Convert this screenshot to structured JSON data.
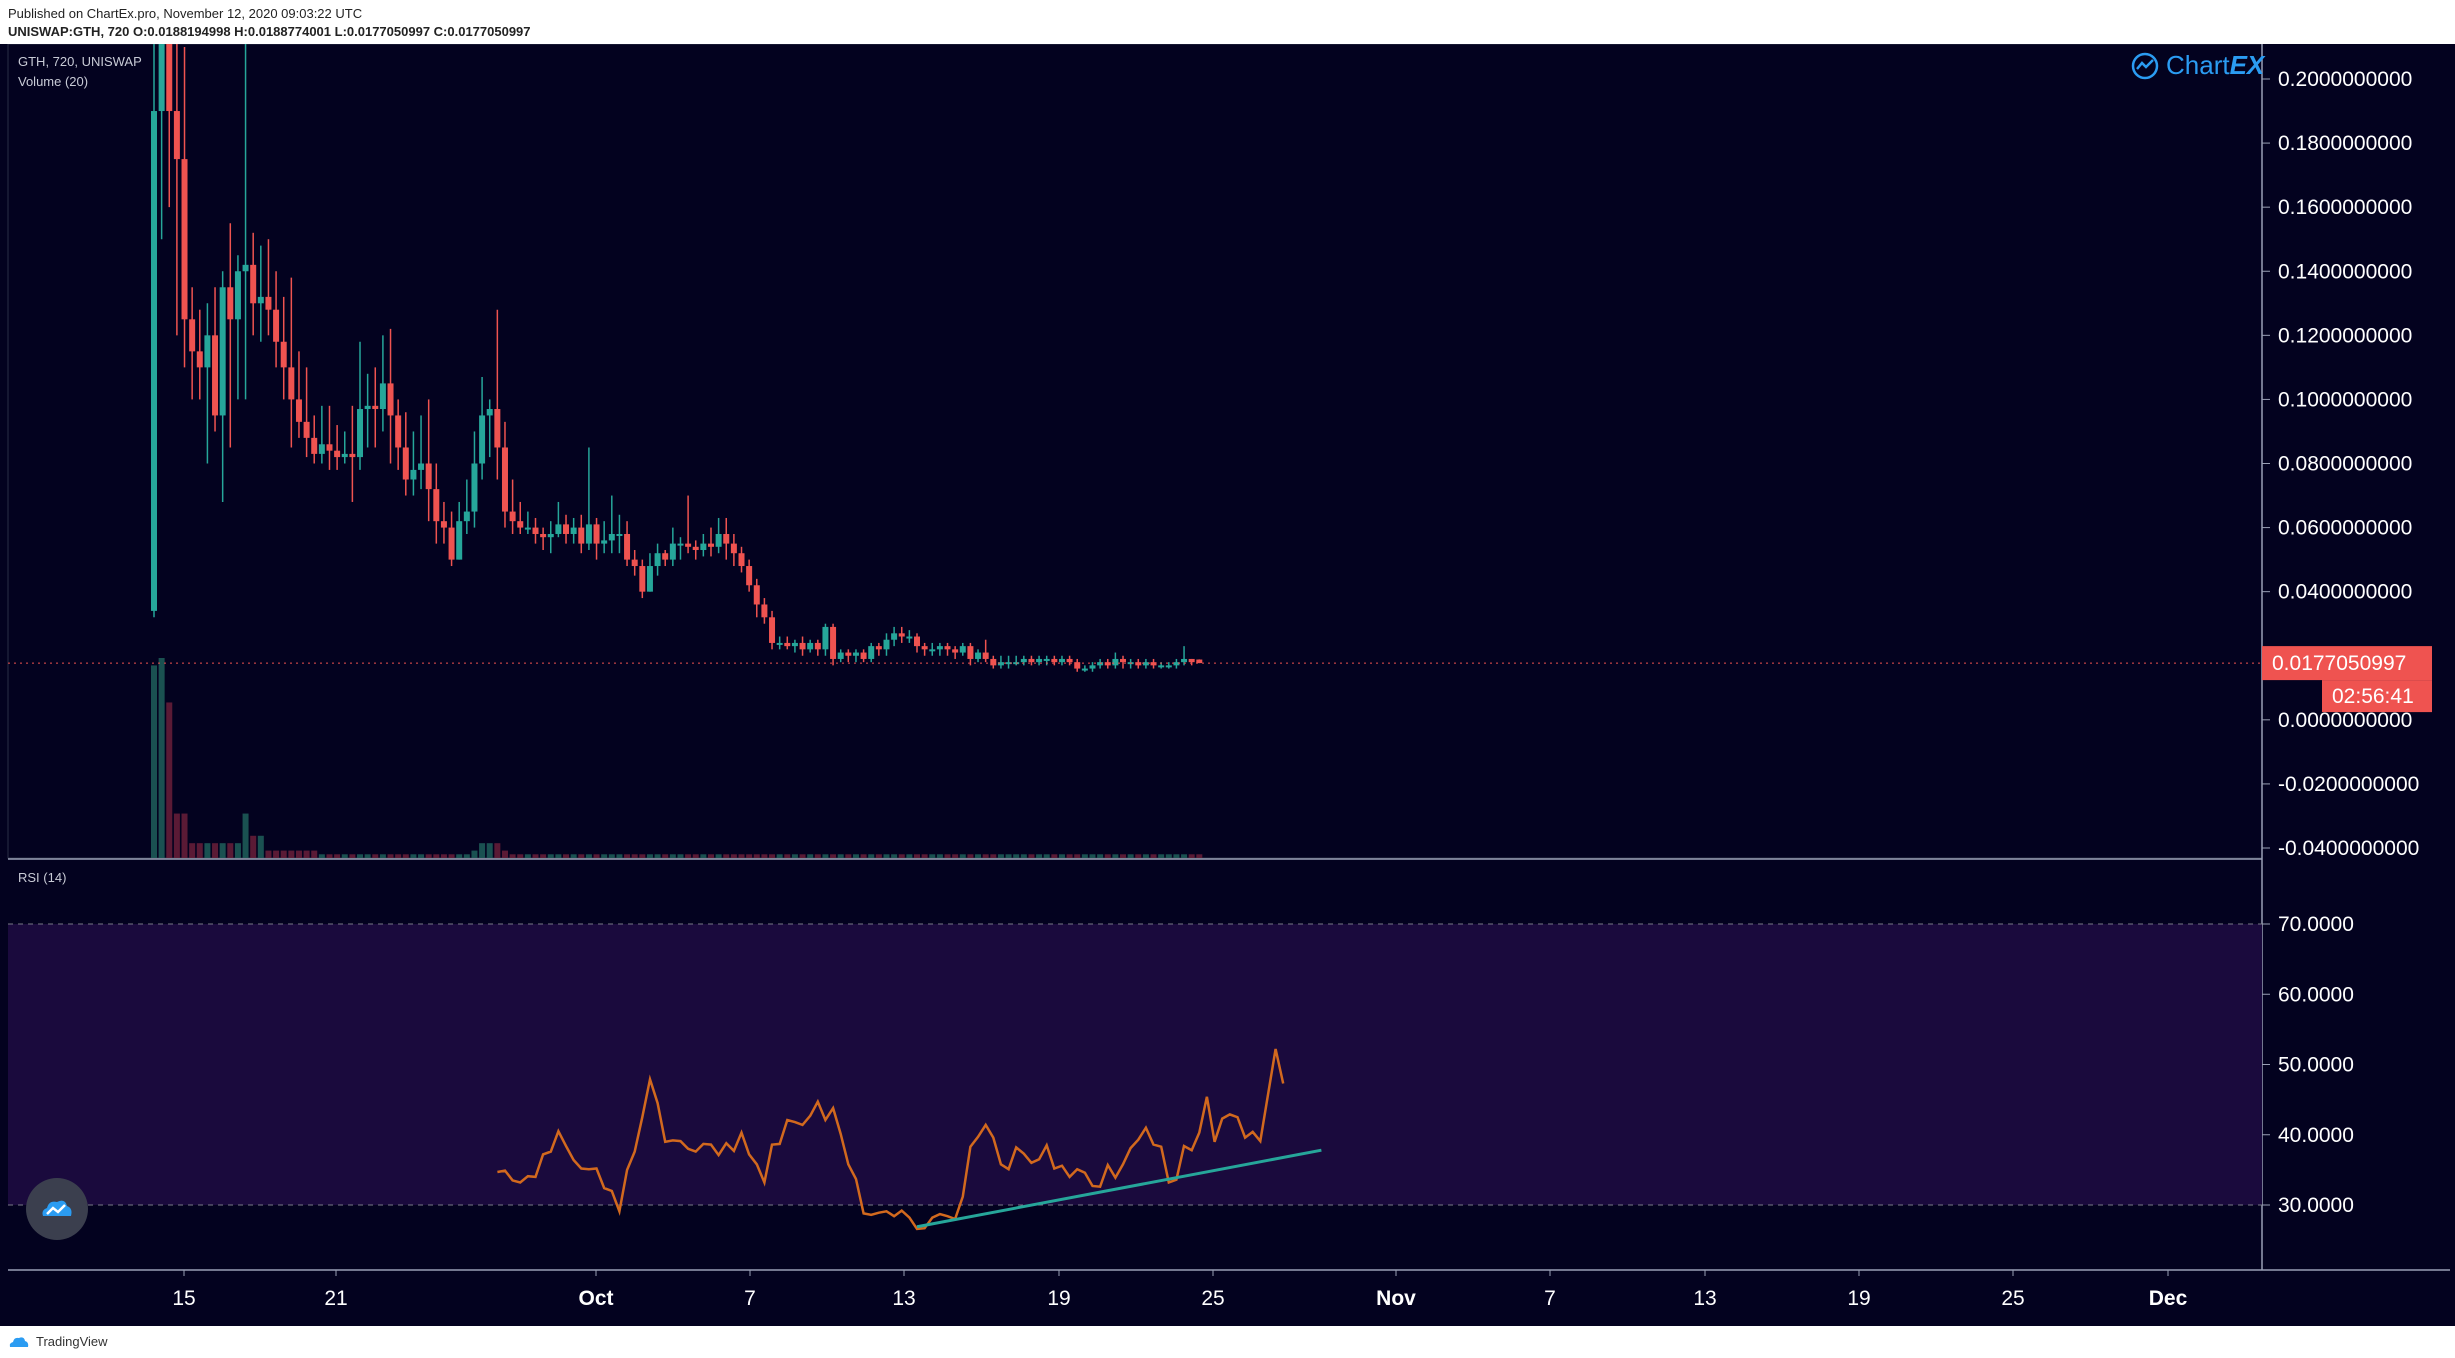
{
  "header": {
    "published": "Published on ChartEx.pro, November 12, 2020 09:03:22 UTC",
    "ohlc": "UNISWAP:GTH, 720  O:0.0188194998  H:0.0188774001  L:0.0177050997  C:0.0177050997"
  },
  "legend": {
    "symbol": "GTH, 720, UNISWAP",
    "volume": "Volume (20)",
    "rsi": "RSI (14)"
  },
  "brand": {
    "prefix": "Chart",
    "suffix": "EX"
  },
  "footer": {
    "label": "TradingView"
  },
  "price_axis": {
    "ticks": [
      "0.2000000000",
      "0.1800000000",
      "0.1600000000",
      "0.1400000000",
      "0.1200000000",
      "0.1000000000",
      "0.0800000000",
      "0.0600000000",
      "0.0400000000",
      "0.0000000000",
      "-0.0200000000",
      "-0.0400000000"
    ],
    "last_price": "0.0177050997",
    "countdown": "02:56:41"
  },
  "rsi_axis": {
    "ticks": [
      "70.0000",
      "60.0000",
      "50.0000",
      "40.0000",
      "30.0000"
    ]
  },
  "time_axis": {
    "ticks": [
      "15",
      "21",
      "Oct",
      "7",
      "13",
      "19",
      "25",
      "Nov",
      "7",
      "13",
      "19",
      "25",
      "Dec"
    ]
  },
  "colors": {
    "background": "#03021f",
    "up": "#26a69a",
    "down": "#ef5350",
    "rsi_line": "#d2691e",
    "trendline": "#26a69a",
    "rsi_band": "#1a0a3d",
    "grid_text": "#ffffff",
    "last_price_bg": "#ef5350"
  },
  "chart_data": [
    {
      "type": "candlestick",
      "title": "GTH, 720, UNISWAP",
      "ylim": [
        -0.04,
        0.21
      ],
      "x_labels": [
        "15",
        "21",
        "Oct",
        "7",
        "13",
        "19",
        "25",
        "Nov",
        "7",
        "13",
        "19",
        "25",
        "Dec"
      ],
      "candles": [
        [
          0.034,
          0.19,
          0.032,
          0.23
        ],
        [
          0.19,
          0.215,
          0.15,
          0.23
        ],
        [
          0.215,
          0.19,
          0.16,
          0.23
        ],
        [
          0.19,
          0.175,
          0.12,
          0.22
        ],
        [
          0.175,
          0.125,
          0.11,
          0.21
        ],
        [
          0.125,
          0.115,
          0.1,
          0.135
        ],
        [
          0.115,
          0.11,
          0.1,
          0.128
        ],
        [
          0.11,
          0.12,
          0.08,
          0.13
        ],
        [
          0.12,
          0.095,
          0.09,
          0.135
        ],
        [
          0.095,
          0.135,
          0.068,
          0.14
        ],
        [
          0.135,
          0.125,
          0.085,
          0.155
        ],
        [
          0.125,
          0.14,
          0.1,
          0.145
        ],
        [
          0.14,
          0.142,
          0.1,
          0.23
        ],
        [
          0.142,
          0.13,
          0.12,
          0.152
        ],
        [
          0.13,
          0.132,
          0.118,
          0.148
        ],
        [
          0.132,
          0.128,
          0.12,
          0.15
        ],
        [
          0.128,
          0.118,
          0.11,
          0.14
        ],
        [
          0.118,
          0.11,
          0.1,
          0.132
        ],
        [
          0.11,
          0.1,
          0.085,
          0.138
        ],
        [
          0.1,
          0.093,
          0.088,
          0.115
        ],
        [
          0.093,
          0.088,
          0.082,
          0.11
        ],
        [
          0.088,
          0.083,
          0.08,
          0.095
        ],
        [
          0.083,
          0.086,
          0.08,
          0.098
        ],
        [
          0.086,
          0.084,
          0.078,
          0.098
        ],
        [
          0.084,
          0.082,
          0.078,
          0.092
        ],
        [
          0.082,
          0.083,
          0.08,
          0.09
        ],
        [
          0.083,
          0.082,
          0.068,
          0.098
        ],
        [
          0.082,
          0.097,
          0.078,
          0.118
        ],
        [
          0.097,
          0.098,
          0.085,
          0.108
        ],
        [
          0.098,
          0.097,
          0.085,
          0.11
        ],
        [
          0.097,
          0.105,
          0.09,
          0.12
        ],
        [
          0.105,
          0.095,
          0.08,
          0.122
        ],
        [
          0.095,
          0.085,
          0.078,
          0.1
        ],
        [
          0.085,
          0.075,
          0.07,
          0.096
        ],
        [
          0.075,
          0.078,
          0.07,
          0.09
        ],
        [
          0.078,
          0.08,
          0.072,
          0.095
        ],
        [
          0.08,
          0.072,
          0.062,
          0.1
        ],
        [
          0.072,
          0.062,
          0.055,
          0.08
        ],
        [
          0.062,
          0.06,
          0.055,
          0.068
        ],
        [
          0.06,
          0.05,
          0.048,
          0.065
        ],
        [
          0.05,
          0.062,
          0.05,
          0.068
        ],
        [
          0.062,
          0.065,
          0.058,
          0.075
        ],
        [
          0.065,
          0.08,
          0.06,
          0.09
        ],
        [
          0.08,
          0.095,
          0.075,
          0.107
        ],
        [
          0.095,
          0.097,
          0.082,
          0.1
        ],
        [
          0.097,
          0.085,
          0.075,
          0.128
        ],
        [
          0.085,
          0.065,
          0.06,
          0.093
        ],
        [
          0.065,
          0.062,
          0.058,
          0.075
        ],
        [
          0.062,
          0.06,
          0.058,
          0.068
        ],
        [
          0.06,
          0.06,
          0.058,
          0.065
        ],
        [
          0.06,
          0.058,
          0.055,
          0.063
        ],
        [
          0.058,
          0.057,
          0.053,
          0.06
        ],
        [
          0.057,
          0.058,
          0.052,
          0.062
        ],
        [
          0.058,
          0.061,
          0.057,
          0.068
        ],
        [
          0.061,
          0.058,
          0.055,
          0.064
        ],
        [
          0.058,
          0.06,
          0.055,
          0.063
        ],
        [
          0.06,
          0.055,
          0.052,
          0.064
        ],
        [
          0.055,
          0.061,
          0.053,
          0.085
        ],
        [
          0.061,
          0.055,
          0.05,
          0.063
        ],
        [
          0.055,
          0.056,
          0.052,
          0.062
        ],
        [
          0.056,
          0.058,
          0.052,
          0.07
        ],
        [
          0.058,
          0.058,
          0.052,
          0.064
        ],
        [
          0.058,
          0.05,
          0.048,
          0.062
        ],
        [
          0.05,
          0.048,
          0.045,
          0.053
        ],
        [
          0.048,
          0.04,
          0.038,
          0.05
        ],
        [
          0.04,
          0.048,
          0.04,
          0.052
        ],
        [
          0.048,
          0.052,
          0.045,
          0.055
        ],
        [
          0.052,
          0.05,
          0.048,
          0.053
        ],
        [
          0.05,
          0.055,
          0.048,
          0.06
        ],
        [
          0.055,
          0.055,
          0.05,
          0.057
        ],
        [
          0.055,
          0.054,
          0.052,
          0.07
        ],
        [
          0.054,
          0.053,
          0.05,
          0.056
        ],
        [
          0.053,
          0.055,
          0.051,
          0.058
        ],
        [
          0.055,
          0.054,
          0.051,
          0.06
        ],
        [
          0.054,
          0.058,
          0.052,
          0.063
        ],
        [
          0.058,
          0.055,
          0.05,
          0.063
        ],
        [
          0.055,
          0.052,
          0.048,
          0.058
        ],
        [
          0.052,
          0.048,
          0.046,
          0.054
        ],
        [
          0.048,
          0.042,
          0.04,
          0.05
        ],
        [
          0.042,
          0.036,
          0.032,
          0.044
        ],
        [
          0.036,
          0.032,
          0.03,
          0.038
        ],
        [
          0.032,
          0.024,
          0.022,
          0.034
        ],
        [
          0.024,
          0.024,
          0.022,
          0.026
        ],
        [
          0.024,
          0.023,
          0.022,
          0.026
        ],
        [
          0.023,
          0.024,
          0.021,
          0.025
        ],
        [
          0.024,
          0.022,
          0.02,
          0.026
        ],
        [
          0.022,
          0.024,
          0.021,
          0.025
        ],
        [
          0.024,
          0.022,
          0.02,
          0.025
        ],
        [
          0.022,
          0.029,
          0.02,
          0.03
        ],
        [
          0.029,
          0.019,
          0.017,
          0.03
        ],
        [
          0.019,
          0.021,
          0.018,
          0.022
        ],
        [
          0.021,
          0.02,
          0.018,
          0.022
        ],
        [
          0.02,
          0.021,
          0.018,
          0.022
        ],
        [
          0.021,
          0.019,
          0.018,
          0.022
        ],
        [
          0.019,
          0.023,
          0.018,
          0.024
        ],
        [
          0.023,
          0.022,
          0.02,
          0.024
        ],
        [
          0.022,
          0.025,
          0.02,
          0.027
        ],
        [
          0.025,
          0.027,
          0.023,
          0.029
        ],
        [
          0.027,
          0.026,
          0.024,
          0.029
        ],
        [
          0.026,
          0.026,
          0.024,
          0.028
        ],
        [
          0.026,
          0.023,
          0.021,
          0.027
        ],
        [
          0.023,
          0.022,
          0.02,
          0.024
        ],
        [
          0.022,
          0.022,
          0.02,
          0.024
        ],
        [
          0.022,
          0.023,
          0.02,
          0.024
        ],
        [
          0.023,
          0.022,
          0.02,
          0.024
        ],
        [
          0.022,
          0.021,
          0.019,
          0.023
        ],
        [
          0.021,
          0.023,
          0.02,
          0.024
        ],
        [
          0.023,
          0.019,
          0.017,
          0.024
        ],
        [
          0.019,
          0.021,
          0.018,
          0.022
        ],
        [
          0.021,
          0.019,
          0.018,
          0.025
        ],
        [
          0.019,
          0.017,
          0.016,
          0.02
        ],
        [
          0.017,
          0.018,
          0.016,
          0.02
        ],
        [
          0.018,
          0.018,
          0.016,
          0.02
        ],
        [
          0.018,
          0.018,
          0.017,
          0.02
        ],
        [
          0.018,
          0.019,
          0.017,
          0.02
        ],
        [
          0.019,
          0.018,
          0.017,
          0.02
        ],
        [
          0.018,
          0.019,
          0.017,
          0.02
        ],
        [
          0.019,
          0.019,
          0.017,
          0.02
        ],
        [
          0.019,
          0.018,
          0.017,
          0.02
        ],
        [
          0.018,
          0.019,
          0.017,
          0.02
        ],
        [
          0.019,
          0.018,
          0.017,
          0.02
        ],
        [
          0.018,
          0.016,
          0.015,
          0.019
        ],
        [
          0.016,
          0.016,
          0.015,
          0.017
        ],
        [
          0.016,
          0.017,
          0.015,
          0.018
        ],
        [
          0.017,
          0.018,
          0.016,
          0.019
        ],
        [
          0.018,
          0.017,
          0.016,
          0.019
        ],
        [
          0.017,
          0.019,
          0.016,
          0.021
        ],
        [
          0.019,
          0.018,
          0.016,
          0.02
        ],
        [
          0.018,
          0.018,
          0.016,
          0.019
        ],
        [
          0.018,
          0.017,
          0.016,
          0.019
        ],
        [
          0.017,
          0.018,
          0.016,
          0.019
        ],
        [
          0.018,
          0.017,
          0.016,
          0.019
        ],
        [
          0.017,
          0.017,
          0.016,
          0.018
        ],
        [
          0.017,
          0.017,
          0.016,
          0.018
        ],
        [
          0.017,
          0.018,
          0.016,
          0.019
        ],
        [
          0.018,
          0.019,
          0.017,
          0.023
        ],
        [
          0.019,
          0.018,
          0.017,
          0.019
        ],
        [
          0.0188194998,
          0.0177050997,
          0.0177050997,
          0.0188774001
        ]
      ],
      "volume": [
        0.26,
        0.27,
        0.21,
        0.06,
        0.06,
        0.02,
        0.02,
        0.02,
        0.02,
        0.02,
        0.02,
        0.02,
        0.06,
        0.03,
        0.03,
        0.01,
        0.01,
        0.01,
        0.01,
        0.01,
        0.01,
        0.01,
        0.005,
        0.005,
        0.005,
        0.005,
        0.005,
        0.005,
        0.005,
        0.005,
        0.005,
        0.005,
        0.005,
        0.005,
        0.005,
        0.005,
        0.005,
        0.005,
        0.005,
        0.005,
        0.005,
        0.005,
        0.01,
        0.02,
        0.02,
        0.02,
        0.01,
        0.005,
        0.005,
        0.005,
        0.005,
        0.005,
        0.005,
        0.005,
        0.005,
        0.005,
        0.005,
        0.005,
        0.005,
        0.005,
        0.005,
        0.005,
        0.005,
        0.005,
        0.005,
        0.005,
        0.005,
        0.005,
        0.005,
        0.005,
        0.005,
        0.005,
        0.005,
        0.005,
        0.005,
        0.005,
        0.005,
        0.005,
        0.005,
        0.005,
        0.005,
        0.005,
        0.005,
        0.005,
        0.005,
        0.005,
        0.005,
        0.005,
        0.005,
        0.005,
        0.005,
        0.005,
        0.005,
        0.005,
        0.005,
        0.005,
        0.005,
        0.005,
        0.005,
        0.005,
        0.005,
        0.005,
        0.005,
        0.005,
        0.005,
        0.005,
        0.005,
        0.005,
        0.005,
        0.005,
        0.005,
        0.005,
        0.005,
        0.005,
        0.005,
        0.005,
        0.005,
        0.005,
        0.005,
        0.005,
        0.005,
        0.005,
        0.005,
        0.005,
        0.005,
        0.005,
        0.005,
        0.005,
        0.005,
        0.005,
        0.005,
        0.005,
        0.005,
        0.005,
        0.005,
        0.005,
        0.005,
        0.005,
        0.005,
        0.005,
        0.005,
        0.005,
        0.005,
        0.005,
        0.005,
        0.005,
        0.005,
        0.005,
        0.005,
        0.005,
        0.005,
        0.005,
        0.005,
        0.005,
        0.005,
        0.01,
        0.02
      ]
    },
    {
      "type": "line",
      "title": "RSI (14)",
      "ylim": [
        20,
        80
      ],
      "levels": [
        70,
        30
      ],
      "values": [
        34.7,
        34.9,
        33.5,
        33.2,
        34.1,
        34.0,
        37.2,
        37.6,
        40.5,
        38.4,
        36.4,
        35.2,
        35.1,
        35.2,
        32.4,
        32.0,
        29.1,
        35.0,
        37.6,
        42.5,
        47.9,
        44.5,
        39.0,
        39.2,
        39.1,
        38.0,
        37.6,
        38.7,
        38.6,
        37.1,
        38.8,
        37.7,
        40.3,
        37.2,
        35.8,
        33.2,
        38.6,
        38.7,
        42.1,
        41.8,
        41.4,
        42.7,
        44.7,
        42.1,
        43.8,
        40.1,
        35.8,
        33.7,
        28.8,
        28.6,
        28.9,
        29.1,
        28.4,
        29.2,
        28.2,
        26.6,
        26.7,
        28.2,
        28.7,
        28.4,
        28.0,
        31.2,
        38.3,
        39.7,
        41.4,
        39.6,
        35.8,
        35.1,
        38.2,
        37.3,
        36.0,
        36.5,
        38.5,
        35.2,
        35.6,
        34.0,
        35.1,
        34.6,
        32.7,
        32.6,
        35.7,
        33.9,
        35.8,
        38.1,
        39.3,
        41.0,
        38.6,
        38.3,
        33.2,
        33.6,
        38.4,
        37.8,
        40.3,
        45.4,
        39.0,
        42.3,
        42.9,
        42.5,
        39.6,
        40.4,
        39.1,
        45.7,
        52.2,
        47.3
      ],
      "trendline": [
        [
          55,
          26.9
        ],
        [
          108,
          37.8
        ]
      ]
    }
  ]
}
